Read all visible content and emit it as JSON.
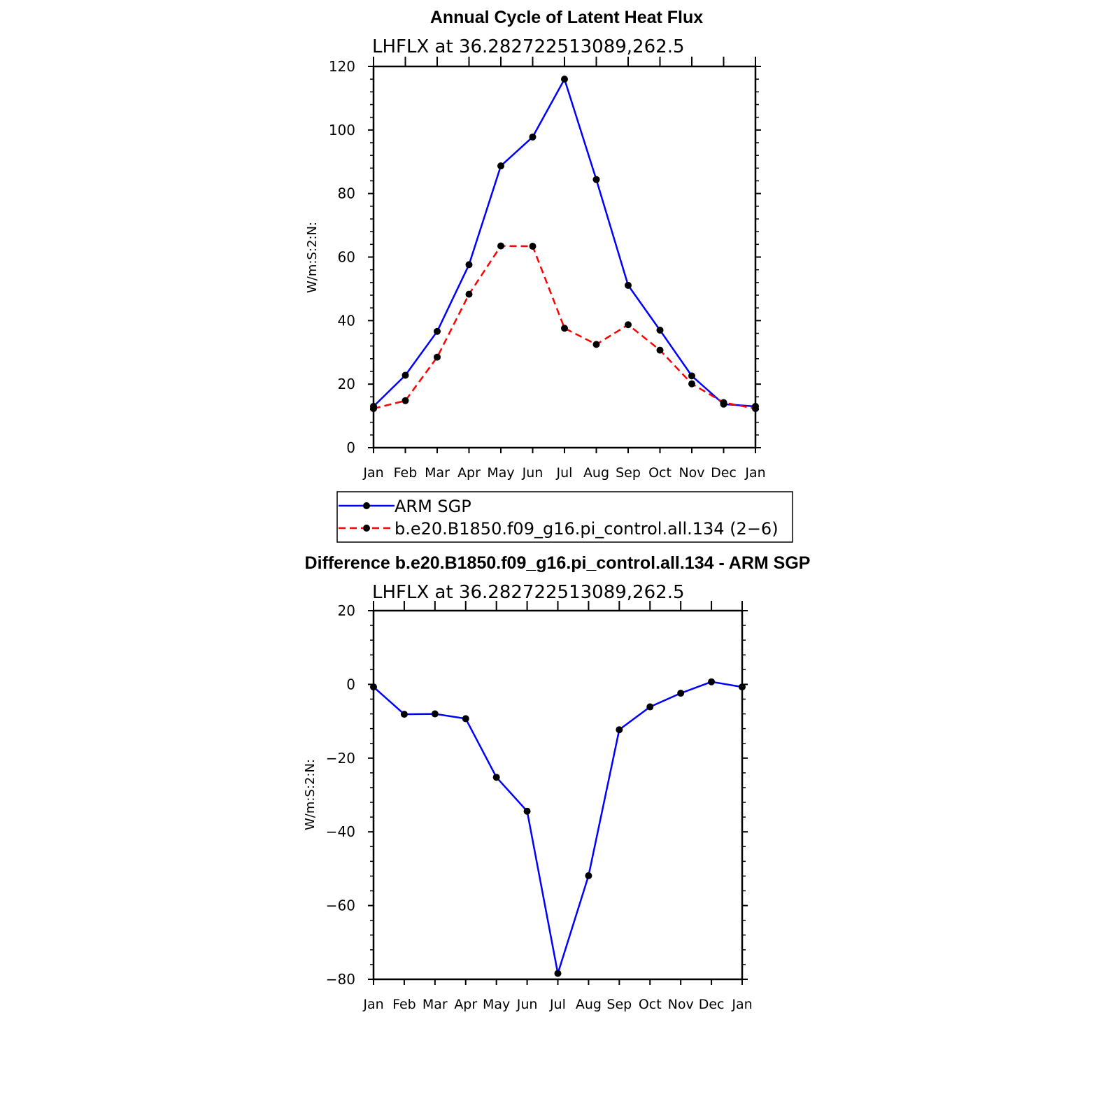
{
  "chart_data": [
    {
      "type": "line",
      "title": "Annual Cycle of Latent Heat Flux",
      "subtitle": "LHFLX at 36.282722513089,262.5",
      "xlabel": "",
      "ylabel": "W/m:S:2:N:",
      "categories": [
        "Jan",
        "Feb",
        "Mar",
        "Apr",
        "May",
        "Jun",
        "Jul",
        "Aug",
        "Sep",
        "Oct",
        "Nov",
        "Dec",
        "Jan"
      ],
      "ylim": [
        0,
        120
      ],
      "yticks": [
        0,
        20,
        40,
        60,
        80,
        100,
        120
      ],
      "ytick_labels": [
        "0",
        "20",
        "40",
        "60",
        "80",
        "100",
        "120"
      ],
      "series": [
        {
          "name": "ARM SGP",
          "color": "#0000ff",
          "dash": "solid",
          "values": [
            13.0,
            22.8,
            36.6,
            57.6,
            88.7,
            97.8,
            116.0,
            84.4,
            51.1,
            37.0,
            22.6,
            13.7,
            13.0
          ]
        },
        {
          "name": "b.e20.B1850.f09_g16.pi_control.all.134 (2−6)",
          "color": "#ff0000",
          "dash": "dashed",
          "values": [
            12.3,
            14.8,
            28.5,
            48.3,
            63.5,
            63.4,
            37.6,
            32.5,
            38.7,
            30.7,
            20.1,
            14.2,
            12.3
          ]
        }
      ],
      "legend": [
        "ARM SGP",
        "b.e20.B1850.f09_g16.pi_control.all.134 (2−6)"
      ]
    },
    {
      "type": "line",
      "title": "Difference b.e20.B1850.f09_g16.pi_control.all.134 - ARM SGP",
      "subtitle": "LHFLX at 36.282722513089,262.5",
      "xlabel": "",
      "ylabel": "W/m:S:2:N:",
      "categories": [
        "Jan",
        "Feb",
        "Mar",
        "Apr",
        "May",
        "Jun",
        "Jul",
        "Aug",
        "Sep",
        "Oct",
        "Nov",
        "Dec",
        "Jan"
      ],
      "ylim": [
        -80,
        20
      ],
      "yticks": [
        -80,
        -60,
        -40,
        -20,
        0,
        20
      ],
      "ytick_labels": [
        "−80",
        "−60",
        "−40",
        "−20",
        "0",
        "20"
      ],
      "series": [
        {
          "name": "Difference",
          "color": "#0000ff",
          "dash": "solid",
          "values": [
            -0.7,
            -8.1,
            -8.0,
            -9.3,
            -25.2,
            -34.4,
            -78.4,
            -51.9,
            -12.3,
            -6.1,
            -2.4,
            0.7,
            -0.7
          ]
        }
      ]
    }
  ]
}
